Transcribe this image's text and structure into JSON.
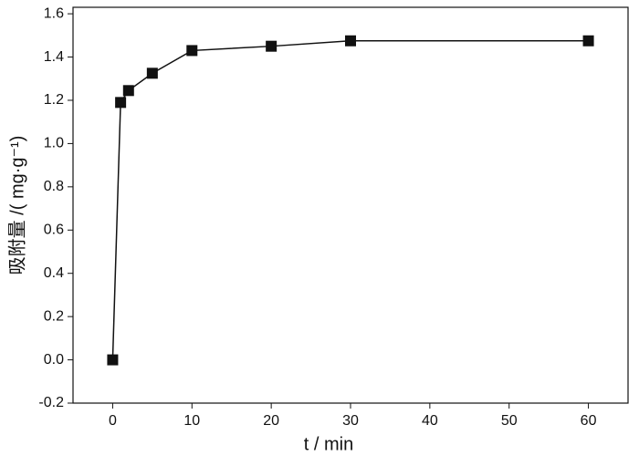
{
  "chart_data": {
    "type": "line",
    "x_label": "t / min",
    "y_label": "吸附量 /( mg·g⁻¹)",
    "x": [
      0,
      1,
      2,
      5,
      10,
      20,
      30,
      60
    ],
    "series": [
      {
        "color": "#111111",
        "values": [
          0,
          1.19,
          1.245,
          1.325,
          1.43,
          1.45,
          1.475,
          1.475
        ]
      }
    ],
    "xlim": [
      -5,
      65
    ],
    "xticks": [
      0,
      10,
      20,
      30,
      40,
      50,
      60
    ],
    "ylim": [
      -0.2,
      1.63
    ],
    "yticks": [
      -0.2,
      {
        "value": 0,
        "label": "0.0"
      },
      0.2,
      0.4,
      0.6,
      0.8,
      {
        "value": 1,
        "label": "1.0"
      },
      1.2,
      1.4,
      1.6
    ],
    "grid": false
  }
}
